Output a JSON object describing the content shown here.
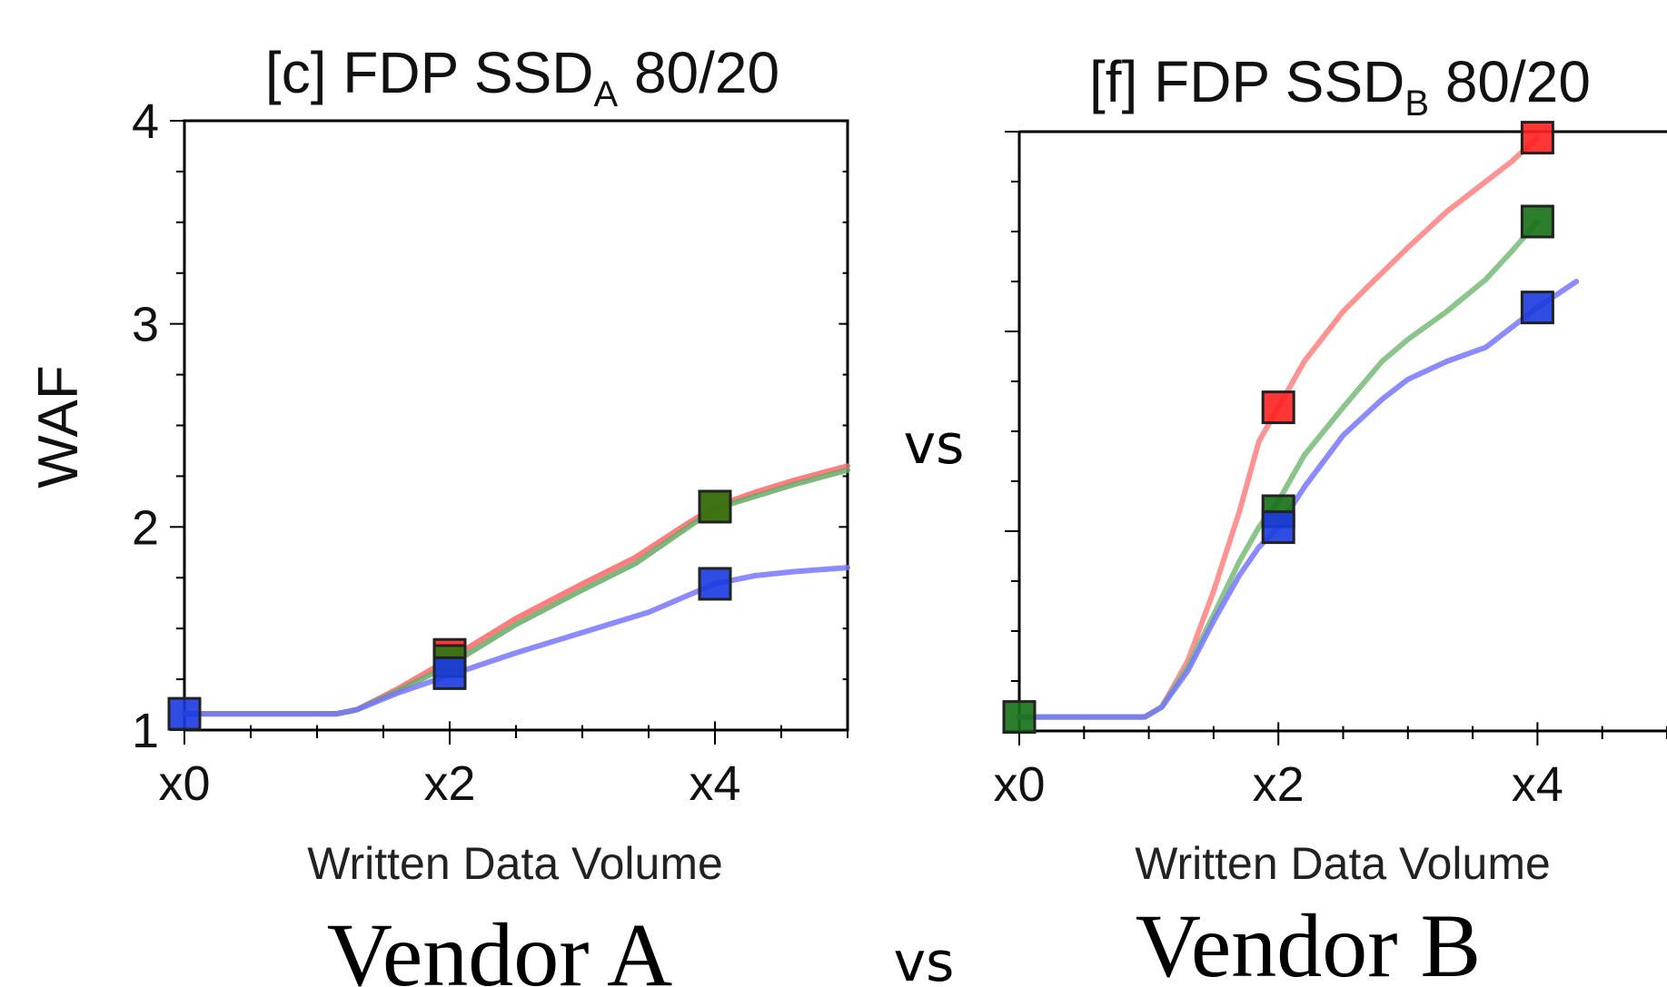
{
  "chart_data": [
    {
      "type": "line",
      "title_prefix": "[c] FDP SSD",
      "title_sub": "A",
      "title_suffix": " 80/20",
      "xlabel": "Written Data Volume",
      "ylabel": "WAF",
      "xlim": [
        0,
        5
      ],
      "ylim": [
        1,
        4
      ],
      "xticks": [
        0,
        2,
        4
      ],
      "xtick_labels": [
        "x0",
        "x2",
        "x4"
      ],
      "yticks": [
        1,
        2,
        3,
        4
      ],
      "ytick_labels": [
        "1",
        "2",
        "3",
        "4"
      ],
      "series": [
        {
          "color": "#ff6666",
          "marker_color": "#ff2020",
          "x": [
            0,
            1.15,
            1.3,
            1.6,
            2.0,
            2.5,
            3.0,
            3.4,
            3.8,
            4.0,
            4.3,
            4.6,
            5.0
          ],
          "y": [
            1.08,
            1.08,
            1.1,
            1.2,
            1.35,
            1.55,
            1.72,
            1.85,
            2.02,
            2.1,
            2.17,
            2.23,
            2.3
          ],
          "markers": [
            [
              2,
              1.37
            ],
            [
              4,
              2.1
            ]
          ]
        },
        {
          "color": "#66aa66",
          "marker_color": "#2a7a10",
          "x": [
            0,
            1.15,
            1.3,
            1.6,
            2.0,
            2.5,
            3.0,
            3.4,
            3.8,
            4.0,
            4.3,
            4.6,
            5.0
          ],
          "y": [
            1.08,
            1.08,
            1.1,
            1.19,
            1.32,
            1.52,
            1.69,
            1.82,
            2.0,
            2.09,
            2.15,
            2.21,
            2.28
          ],
          "markers": [
            [
              2,
              1.34
            ],
            [
              4,
              2.1
            ]
          ]
        },
        {
          "color": "#7777ff",
          "marker_color": "#1a3ae0",
          "x": [
            0,
            1.15,
            1.3,
            1.6,
            2.0,
            2.5,
            3.0,
            3.5,
            4.0,
            4.3,
            4.6,
            5.0
          ],
          "y": [
            1.08,
            1.08,
            1.1,
            1.18,
            1.27,
            1.38,
            1.48,
            1.58,
            1.72,
            1.76,
            1.78,
            1.8
          ],
          "markers": [
            [
              0,
              1.08
            ],
            [
              2,
              1.28
            ],
            [
              4,
              1.72
            ]
          ]
        }
      ]
    },
    {
      "type": "line",
      "title_prefix": "[f] FDP SSD",
      "title_sub": "B",
      "title_suffix": " 80/20",
      "xlabel": "Written Data Volume",
      "ylabel": "",
      "xlim": [
        0,
        5
      ],
      "ylim": [
        1,
        4
      ],
      "xticks": [
        0,
        2,
        4
      ],
      "xtick_labels": [
        "x0",
        "x2",
        "x4"
      ],
      "yticks": [
        1,
        2,
        3,
        4
      ],
      "ytick_labels": [],
      "series": [
        {
          "color": "#ff8080",
          "marker_color": "#ff2020",
          "x": [
            0,
            0.97,
            1.1,
            1.3,
            1.5,
            1.7,
            1.85,
            2.0,
            2.2,
            2.5,
            2.7,
            3.0,
            3.3,
            3.6,
            3.8,
            4.0
          ],
          "y": [
            1.07,
            1.07,
            1.12,
            1.35,
            1.7,
            2.1,
            2.45,
            2.62,
            2.85,
            3.1,
            3.23,
            3.42,
            3.6,
            3.75,
            3.85,
            3.97
          ],
          "markers": [
            [
              2,
              2.62
            ],
            [
              4,
              3.97
            ]
          ]
        },
        {
          "color": "#77bb77",
          "marker_color": "#157015",
          "x": [
            0,
            0.97,
            1.1,
            1.3,
            1.5,
            1.7,
            1.85,
            2.0,
            2.2,
            2.5,
            2.8,
            3.0,
            3.3,
            3.6,
            3.8,
            4.0
          ],
          "y": [
            1.07,
            1.07,
            1.12,
            1.32,
            1.58,
            1.85,
            2.02,
            2.15,
            2.38,
            2.62,
            2.85,
            2.96,
            3.1,
            3.26,
            3.4,
            3.55
          ],
          "markers": [
            [
              0,
              1.07
            ],
            [
              2,
              2.1
            ],
            [
              4,
              3.55
            ]
          ]
        },
        {
          "color": "#7777ff",
          "marker_color": "#1a3ae0",
          "x": [
            0,
            0.97,
            1.1,
            1.3,
            1.5,
            1.7,
            1.85,
            2.0,
            2.2,
            2.5,
            2.8,
            3.0,
            3.3,
            3.6,
            3.8,
            4.0,
            4.3
          ],
          "y": [
            1.07,
            1.07,
            1.12,
            1.3,
            1.55,
            1.78,
            1.92,
            2.02,
            2.22,
            2.48,
            2.66,
            2.76,
            2.85,
            2.92,
            3.02,
            3.12,
            3.25
          ],
          "markers": [
            [
              2,
              2.02
            ],
            [
              4,
              3.12
            ]
          ]
        }
      ]
    }
  ],
  "labels": {
    "vs_middle": "vs",
    "vs_bottom": "vs",
    "vendor_a": "Vendor A",
    "vendor_b": "Vendor B"
  }
}
